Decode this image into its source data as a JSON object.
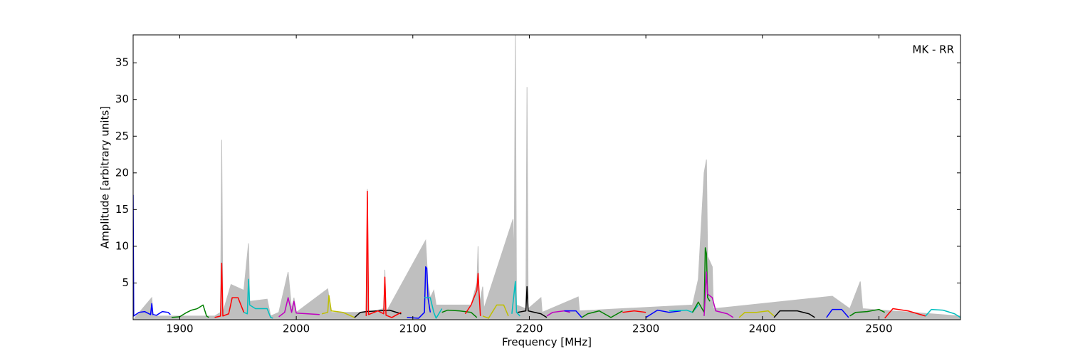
{
  "chart_data": {
    "type": "line",
    "xlabel": "Frequency [MHz]",
    "ylabel": "Amplitude [arbitrary units]",
    "annotation": "MK - RR",
    "xlim": [
      1860,
      2570
    ],
    "ylim": [
      0,
      38.8
    ],
    "xticks": [
      1900,
      2000,
      2100,
      2200,
      2300,
      2400,
      2500
    ],
    "yticks": [
      5,
      10,
      15,
      20,
      25,
      30,
      35
    ],
    "shade": {
      "color": "#bfbfbf",
      "x": [
        1860,
        1876,
        1877,
        1930,
        1935,
        1936,
        1937,
        1944,
        1955,
        1959,
        1960,
        1975,
        1978,
        1985,
        1993,
        1996,
        1998,
        2000,
        2027,
        2030,
        2060,
        2061,
        2062,
        2075,
        2076,
        2077,
        2111,
        2113,
        2115,
        2118,
        2120,
        2150,
        2155,
        2156,
        2157,
        2160,
        2161,
        2186,
        2187,
        2188,
        2189,
        2197,
        2198,
        2199,
        2210,
        2211,
        2242,
        2243,
        2340,
        2345,
        2350,
        2352,
        2353,
        2357,
        2358,
        2460,
        2475,
        2484,
        2486,
        2570
      ],
      "values": [
        0,
        3,
        0.5,
        0.5,
        1,
        24.5,
        1,
        4.8,
        4,
        10.4,
        2.5,
        2.8,
        0.5,
        1,
        6.5,
        1.5,
        3,
        1,
        4.2,
        1,
        1,
        17.8,
        1,
        1.5,
        6.8,
        1,
        10.8,
        5,
        3,
        4,
        2,
        2,
        5,
        10,
        2,
        4.5,
        1.5,
        13.7,
        8,
        38.8,
        2,
        1.5,
        31.7,
        1.5,
        3,
        1,
        3.1,
        1.2,
        2,
        5.5,
        20,
        21.8,
        8.6,
        7.2,
        1.5,
        3.2,
        1.5,
        5.2,
        1.5,
        0.5
      ]
    },
    "series": [
      {
        "color": "#0000ff",
        "x": [
          1860,
          1860.5,
          1865,
          1870,
          1875,
          1876,
          1877,
          1880,
          1885,
          1890,
          1892
        ],
        "values": [
          17,
          0.5,
          1,
          1.1,
          0.7,
          2.2,
          0.7,
          0.6,
          1.1,
          1,
          0.7
        ]
      },
      {
        "color": "#008000",
        "x": [
          1893,
          1900,
          1905,
          1910,
          1915,
          1920,
          1923,
          1925
        ],
        "values": [
          0.3,
          0.4,
          0.9,
          1.3,
          1.5,
          2,
          0.5,
          0.3
        ]
      },
      {
        "color": "#ff0000",
        "x": [
          1930,
          1935,
          1936,
          1937,
          1942,
          1945,
          1950,
          1955
        ],
        "values": [
          0.3,
          0.5,
          7.7,
          0.5,
          0.8,
          3,
          3,
          1
        ]
      },
      {
        "color": "#00bfbf",
        "x": [
          1955,
          1958,
          1959,
          1960,
          1965,
          1975,
          1978,
          1980
        ],
        "values": [
          1,
          0.8,
          5.5,
          2,
          1.5,
          1.5,
          0.3,
          0.2
        ]
      },
      {
        "color": "#bf00bf",
        "x": [
          1985,
          1990,
          1993,
          1996,
          1998,
          2000,
          2010,
          2020
        ],
        "values": [
          0.4,
          1,
          3,
          1,
          2.5,
          0.9,
          0.8,
          0.7
        ]
      },
      {
        "color": "#bfbf00",
        "x": [
          2022,
          2027,
          2028,
          2030,
          2040,
          2050
        ],
        "values": [
          0.8,
          1,
          3.3,
          1.2,
          1,
          0.3
        ]
      },
      {
        "color": "#000000",
        "x": [
          2050,
          2055,
          2060,
          2070,
          2080,
          2090
        ],
        "values": [
          0.3,
          1,
          1.1,
          1.2,
          1.3,
          0.8
        ]
      },
      {
        "color": "#ff0000",
        "x": [
          2060,
          2061,
          2062,
          2070,
          2075,
          2076,
          2077,
          2082,
          2090
        ],
        "values": [
          0.5,
          17.5,
          0.7,
          1.2,
          0.8,
          5.8,
          0.6,
          0.3,
          1
        ]
      },
      {
        "color": "#0000ff",
        "x": [
          2095,
          2105,
          2110,
          2111,
          2112,
          2113,
          2115
        ],
        "values": [
          0.3,
          0.2,
          1,
          7.2,
          7,
          3,
          1
        ]
      },
      {
        "color": "#00bfbf",
        "x": [
          2110,
          2115,
          2118,
          2120,
          2125
        ],
        "values": [
          3,
          3,
          1,
          0.2,
          1.5
        ]
      },
      {
        "color": "#008000",
        "x": [
          2125,
          2130,
          2140,
          2150,
          2155
        ],
        "values": [
          1,
          1.3,
          1.2,
          1,
          0.3
        ]
      },
      {
        "color": "#ff0000",
        "x": [
          2145,
          2150,
          2155,
          2156,
          2158
        ],
        "values": [
          0.8,
          2,
          4,
          6.3,
          0.5
        ]
      },
      {
        "color": "#bfbf00",
        "x": [
          2160,
          2165,
          2172,
          2178,
          2182
        ],
        "values": [
          0.5,
          0.2,
          2,
          2,
          0.5
        ]
      },
      {
        "color": "#00bfbf",
        "x": [
          2185,
          2188,
          2189,
          2192
        ],
        "values": [
          0.8,
          5.2,
          1,
          0.5
        ]
      },
      {
        "color": "#000000",
        "x": [
          2190,
          2197,
          2198,
          2199,
          2210,
          2215
        ],
        "values": [
          1,
          1.2,
          4.5,
          1.2,
          0.8,
          0.3
        ]
      },
      {
        "color": "#bf00bf",
        "x": [
          2215,
          2220,
          2230,
          2235
        ],
        "values": [
          0.5,
          1,
          1.2,
          1
        ]
      },
      {
        "color": "#0000ff",
        "x": [
          2230,
          2240,
          2245
        ],
        "values": [
          1.2,
          1.2,
          0.3
        ]
      },
      {
        "color": "#008000",
        "x": [
          2245,
          2250,
          2260,
          2270,
          2280
        ],
        "values": [
          0.3,
          0.8,
          1.2,
          0.3,
          1.2
        ]
      },
      {
        "color": "#ff0000",
        "x": [
          2280,
          2290,
          2300
        ],
        "values": [
          1,
          1.2,
          1
        ]
      },
      {
        "color": "#0000ff",
        "x": [
          2300,
          2310,
          2320,
          2330
        ],
        "values": [
          0.3,
          1.3,
          1,
          1.2
        ]
      },
      {
        "color": "#00bfbf",
        "x": [
          2320,
          2335,
          2340,
          2345
        ],
        "values": [
          1.2,
          1.3,
          1,
          2
        ]
      },
      {
        "color": "#008000",
        "x": [
          2340,
          2345,
          2350,
          2351,
          2352,
          2353,
          2355
        ],
        "values": [
          1,
          2.4,
          1,
          9.8,
          9,
          3,
          2.5
        ]
      },
      {
        "color": "#bf00bf",
        "x": [
          2350,
          2352,
          2353,
          2357,
          2360,
          2370,
          2375
        ],
        "values": [
          0.5,
          6.5,
          3.5,
          3,
          1.2,
          0.8,
          0.3
        ]
      },
      {
        "color": "#bfbf00",
        "x": [
          2380,
          2385,
          2395,
          2405,
          2410
        ],
        "values": [
          0.3,
          1,
          1,
          1.2,
          0.5
        ]
      },
      {
        "color": "#000000",
        "x": [
          2410,
          2415,
          2430,
          2440,
          2445
        ],
        "values": [
          0.3,
          1.2,
          1.2,
          0.8,
          0.3
        ]
      },
      {
        "color": "#0000ff",
        "x": [
          2455,
          2460,
          2468,
          2474
        ],
        "values": [
          0.3,
          1.4,
          1.4,
          0.3
        ]
      },
      {
        "color": "#008000",
        "x": [
          2475,
          2480,
          2490,
          2500,
          2505
        ],
        "values": [
          0.5,
          1,
          1.1,
          1.4,
          1
        ]
      },
      {
        "color": "#ff0000",
        "x": [
          2505,
          2512,
          2525,
          2540
        ],
        "values": [
          0.2,
          1.5,
          1.2,
          0.5
        ]
      },
      {
        "color": "#00bfbf",
        "x": [
          2540,
          2545,
          2555,
          2565,
          2570
        ],
        "values": [
          0.5,
          1.4,
          1.3,
          0.8,
          0.3
        ]
      }
    ]
  }
}
